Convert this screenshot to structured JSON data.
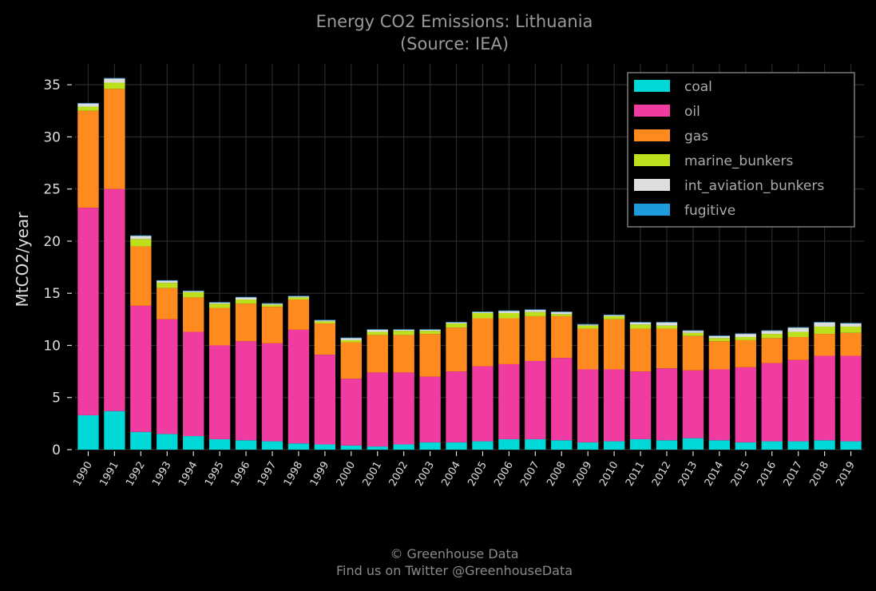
{
  "chart_data": {
    "type": "bar",
    "stacked": true,
    "title": "Energy CO2 Emissions: Lithuania",
    "subtitle": "(Source: IEA)",
    "xlabel": "",
    "ylabel": "MtCO2/year",
    "ylim": [
      0,
      37
    ],
    "yticks": [
      0,
      5,
      10,
      15,
      20,
      25,
      30,
      35
    ],
    "grid": true,
    "legend_position": "top-right",
    "categories": [
      "1990",
      "1991",
      "1992",
      "1993",
      "1994",
      "1995",
      "1996",
      "1997",
      "1998",
      "1999",
      "2000",
      "2001",
      "2002",
      "2003",
      "2004",
      "2005",
      "2006",
      "2007",
      "2008",
      "2009",
      "2010",
      "2011",
      "2012",
      "2013",
      "2014",
      "2015",
      "2016",
      "2017",
      "2018",
      "2019"
    ],
    "series": [
      {
        "name": "coal",
        "color": "#00d7d7",
        "values": [
          3.3,
          3.7,
          1.7,
          1.5,
          1.3,
          1.0,
          0.9,
          0.8,
          0.6,
          0.5,
          0.4,
          0.3,
          0.5,
          0.7,
          0.7,
          0.8,
          1.0,
          1.0,
          0.9,
          0.7,
          0.8,
          1.0,
          0.9,
          1.1,
          0.9,
          0.7,
          0.8,
          0.8,
          0.9,
          0.8
        ]
      },
      {
        "name": "oil",
        "color": "#f03ca0",
        "values": [
          19.9,
          21.3,
          12.1,
          11.0,
          10.0,
          9.0,
          9.5,
          9.4,
          10.9,
          8.6,
          6.4,
          7.1,
          6.9,
          6.3,
          6.8,
          7.2,
          7.2,
          7.5,
          7.9,
          7.0,
          6.9,
          6.5,
          6.9,
          6.5,
          6.8,
          7.2,
          7.5,
          7.8,
          8.1,
          8.2
        ]
      },
      {
        "name": "gas",
        "color": "#ff8a1e",
        "values": [
          9.3,
          9.6,
          5.7,
          3.0,
          3.3,
          3.6,
          3.6,
          3.5,
          2.9,
          3.0,
          3.5,
          3.6,
          3.6,
          4.1,
          4.2,
          4.6,
          4.4,
          4.3,
          4.0,
          3.9,
          4.8,
          4.1,
          3.8,
          3.3,
          2.7,
          2.6,
          2.4,
          2.2,
          2.1,
          2.2
        ]
      },
      {
        "name": "marine_bunkers",
        "color": "#bde01c",
        "values": [
          0.4,
          0.6,
          0.7,
          0.5,
          0.5,
          0.4,
          0.4,
          0.2,
          0.2,
          0.2,
          0.2,
          0.3,
          0.4,
          0.3,
          0.4,
          0.5,
          0.5,
          0.4,
          0.2,
          0.3,
          0.3,
          0.4,
          0.3,
          0.3,
          0.3,
          0.3,
          0.4,
          0.5,
          0.7,
          0.6
        ]
      },
      {
        "name": "int_aviation_bunkers",
        "color": "#dddddd",
        "values": [
          0.3,
          0.4,
          0.3,
          0.2,
          0.1,
          0.1,
          0.2,
          0.1,
          0.1,
          0.1,
          0.2,
          0.2,
          0.1,
          0.1,
          0.1,
          0.1,
          0.2,
          0.2,
          0.2,
          0.1,
          0.1,
          0.2,
          0.3,
          0.2,
          0.2,
          0.3,
          0.3,
          0.4,
          0.4,
          0.3
        ]
      },
      {
        "name": "fugitive",
        "color": "#1f9adb",
        "values": [
          0.05,
          0.05,
          0.05,
          0.05,
          0.05,
          0.05,
          0.05,
          0.05,
          0.05,
          0.05,
          0.05,
          0.05,
          0.05,
          0.05,
          0.05,
          0.05,
          0.05,
          0.05,
          0.05,
          0.05,
          0.05,
          0.05,
          0.05,
          0.05,
          0.05,
          0.05,
          0.05,
          0.05,
          0.05,
          0.05
        ]
      }
    ]
  },
  "footer": {
    "line1": "© Greenhouse Data",
    "line2": "Find us on Twitter @GreenhouseData"
  },
  "colors": {
    "background": "#000000",
    "grid": "#2a2a2a",
    "legend_border": "#7a7a7a"
  }
}
